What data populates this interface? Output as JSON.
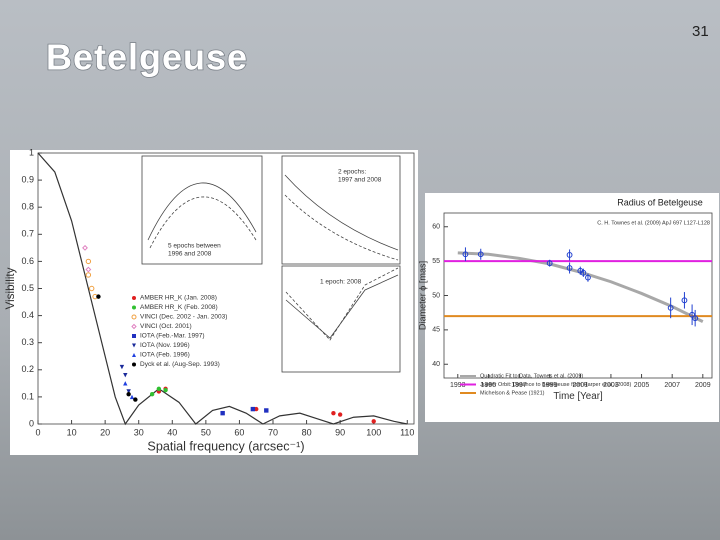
{
  "slide": {
    "title": "Betelgeuse",
    "page_number": "31"
  },
  "chart_data": [
    {
      "type": "scatter",
      "xlabel": "Spatial frequency (arcsec⁻¹)",
      "ylabel": "Visibility",
      "xlim": [
        0,
        112
      ],
      "ylim": [
        0,
        1
      ],
      "xticks": [
        0,
        10,
        20,
        30,
        40,
        50,
        60,
        70,
        80,
        90,
        100,
        110
      ],
      "yticks": [
        0,
        0.1,
        0.2,
        0.3,
        0.4,
        0.5,
        0.6,
        0.7,
        0.8,
        0.9,
        1
      ],
      "model_curve": {
        "color": "#333333",
        "x": [
          0,
          5,
          10,
          15,
          20,
          23,
          26,
          30,
          36,
          42,
          47,
          52,
          57,
          62,
          67,
          72,
          78,
          83,
          88,
          94,
          100,
          106,
          110
        ],
        "values": [
          1,
          0.93,
          0.75,
          0.5,
          0.25,
          0.1,
          0,
          0.07,
          0.13,
          0.08,
          0,
          0.05,
          0.065,
          0.04,
          0,
          0.03,
          0.04,
          0.02,
          0,
          0.025,
          0.03,
          0.01,
          0
        ]
      },
      "series": [
        {
          "name": "AMBER HR_K (Jan. 2008)",
          "color": "#e02020",
          "marker": "circle",
          "x": [
            36,
            38,
            65,
            88,
            90,
            100
          ],
          "values": [
            0.12,
            0.13,
            0.055,
            0.04,
            0.035,
            0.01
          ]
        },
        {
          "name": "AMBER HR_K (Feb. 2008)",
          "color": "#30c030",
          "marker": "circle",
          "x": [
            34,
            36,
            38
          ],
          "values": [
            0.11,
            0.13,
            0.125
          ]
        },
        {
          "name": "VINCI (Dec. 2002 - Jan. 2003)",
          "color": "#f0a040",
          "marker": "open-circle",
          "x": [
            15,
            15,
            16,
            17
          ],
          "values": [
            0.6,
            0.55,
            0.5,
            0.47
          ]
        },
        {
          "name": "VINCI (Oct. 2001)",
          "color": "#e080c0",
          "marker": "diamond",
          "x": [
            14,
            15
          ],
          "values": [
            0.65,
            0.57
          ]
        },
        {
          "name": "IOTA (Feb.-Mar. 1997)",
          "color": "#2030c0",
          "marker": "square",
          "x": [
            55,
            64,
            68
          ],
          "values": [
            0.04,
            0.055,
            0.05
          ]
        },
        {
          "name": "IOTA (Nov. 1996)",
          "color": "#1a2a9a",
          "marker": "triangle-down",
          "x": [
            25,
            26,
            27
          ],
          "values": [
            0.21,
            0.18,
            0.12
          ]
        },
        {
          "name": "IOTA (Feb. 1996)",
          "color": "#2040e0",
          "marker": "triangle-up",
          "x": [
            26,
            28
          ],
          "values": [
            0.15,
            0.1
          ]
        },
        {
          "name": "Dyck et al. (Aug-Sep. 1993)",
          "color": "#000000",
          "marker": "circle",
          "x": [
            18,
            27,
            29
          ],
          "values": [
            0.47,
            0.11,
            0.09
          ]
        }
      ],
      "annotations": [
        [
          "5 epochs between",
          "1996 and 2008"
        ],
        [
          "2 epochs:",
          "1997 and 2008"
        ],
        [
          "1 epoch: 2008"
        ]
      ]
    },
    {
      "type": "line",
      "title": "Radius of Betelgeuse",
      "annotation": "C. H. Townes et al. (2009) ApJ 697 L127-L128",
      "xlabel": "Time [Year]",
      "ylabel": "Diameter ϕ [mas]",
      "xlim": [
        1992.1,
        2009.6
      ],
      "ylim": [
        38,
        62
      ],
      "xticks": [
        1993,
        1995,
        1997,
        1999,
        2001,
        2003,
        2005,
        2007,
        2009
      ],
      "yticks": [
        40,
        45,
        50,
        55,
        60
      ],
      "points": {
        "color": "#2040d0",
        "x": [
          1993.5,
          1994.5,
          1999,
          2000.3,
          2000.3,
          2001,
          2001.2,
          2001.5,
          2006.9,
          2007.8,
          2008.3,
          2008.5
        ],
        "values": [
          56,
          56,
          54.7,
          55.9,
          54,
          53.6,
          53.3,
          52.6,
          48.2,
          49.3,
          47.2,
          46.7
        ],
        "errors": [
          1,
          0.8,
          0.5,
          0.8,
          0.8,
          0.6,
          0.6,
          0.6,
          1.5,
          1.2,
          1.5,
          1.2
        ]
      },
      "series": [
        {
          "name": "Quadratic Fit to Data, Townes et al. (2009)",
          "color": "#a8a8a8",
          "width": 3,
          "x": [
            1993,
            1995,
            1997,
            1999,
            2001,
            2003,
            2005,
            2007,
            2009
          ],
          "values": [
            56.2,
            56,
            55.4,
            54.6,
            53.4,
            52,
            50.3,
            48.4,
            46.2
          ]
        },
        {
          "name": "Jupiter Orbit: Distance to Betelgeuse from Harper et al. (2008)",
          "color": "#e020e0",
          "width": 2,
          "x": [
            1992.1,
            2009.6
          ],
          "values": [
            55,
            55
          ]
        },
        {
          "name": "Michelson & Pease (1921)",
          "color": "#e08a20",
          "width": 2,
          "x": [
            1992.1,
            2009.6
          ],
          "values": [
            47,
            47
          ]
        }
      ]
    }
  ]
}
